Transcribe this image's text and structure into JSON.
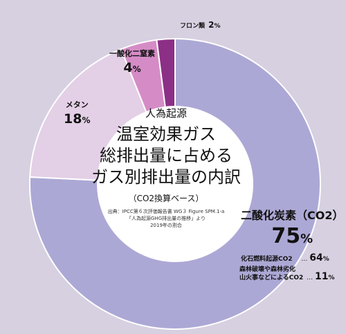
{
  "chart_data": {
    "type": "pie",
    "title_lines": [
      "人為起源",
      "温室効果ガス",
      "総排出量に占める",
      "ガス別排出量の内訳"
    ],
    "subtitle": "（CO2換算ベース）",
    "source_lines": [
      "出典：IPCC第６次評価報告書 WG３ Figure SPM.1-a",
      "「人為起源GHG排出量の推移」より",
      "2019年の割合"
    ],
    "slices": [
      {
        "label": "二酸化炭素（CO2）",
        "value": 75,
        "value_text": "75",
        "color": "#aca8d5"
      },
      {
        "label": "メタン",
        "value": 18,
        "value_text": "18",
        "color": "#e3cfe6"
      },
      {
        "label": "一酸化二窒素",
        "value": 4,
        "value_text": "4",
        "color": "#d58cc6"
      },
      {
        "label": "フロン類",
        "value": 2,
        "value_text": "2",
        "color": "#8c2f86"
      }
    ],
    "unit": "%",
    "breakdown": [
      {
        "label": "化石燃料起源CO2",
        "value": 64,
        "value_text": "64"
      },
      {
        "label_lines": [
          "森林破壊や森林劣化",
          "山火事などによるCO2"
        ],
        "value": 11,
        "value_text": "11"
      }
    ]
  }
}
